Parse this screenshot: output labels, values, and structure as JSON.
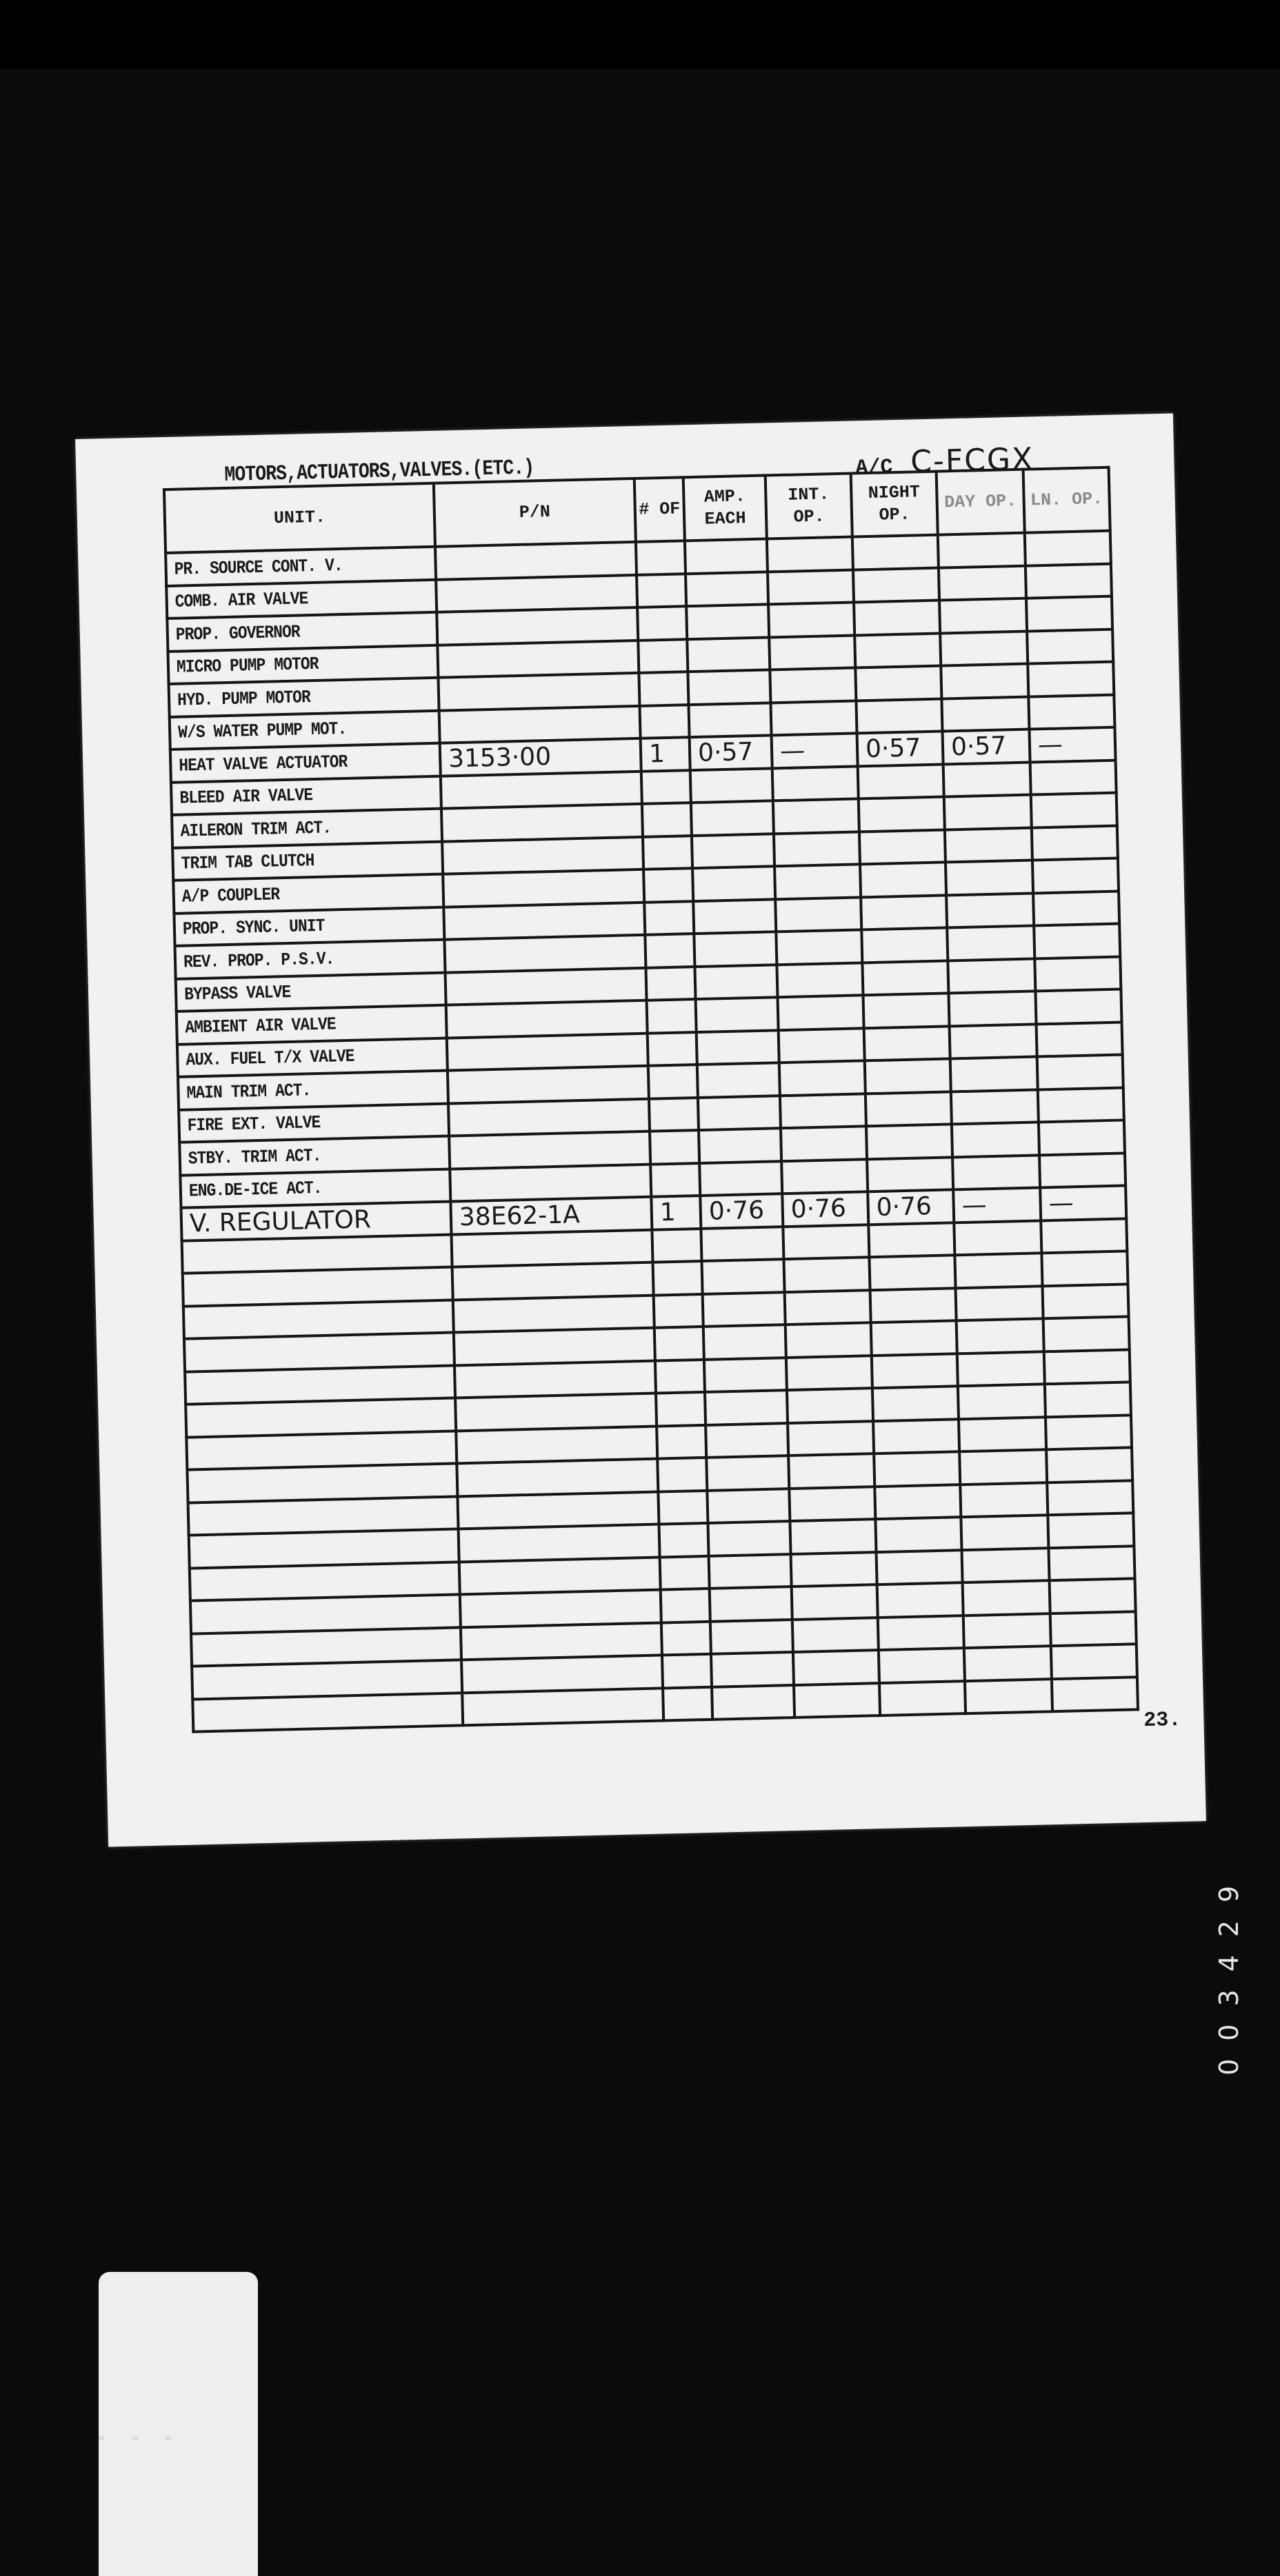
{
  "form": {
    "title": "MOTORS,ACTUATORS,VALVES.(ETC.)",
    "aircraft_label": "A/C",
    "aircraft_registration": "C-FCGX",
    "page_number": "23.",
    "columns": [
      "UNIT.",
      "P/N",
      "# OF",
      "AMP. EACH",
      "INT. OP.",
      "NIGHT OP.",
      "DAY OP.",
      "LN. OP."
    ],
    "rows": [
      {
        "unit": "PR. SOURCE CONT. V."
      },
      {
        "unit": "COMB. AIR VALVE"
      },
      {
        "unit": "PROP. GOVERNOR"
      },
      {
        "unit": "MICRO PUMP MOTOR"
      },
      {
        "unit": "HYD. PUMP MOTOR"
      },
      {
        "unit": "W/S WATER PUMP MOT."
      },
      {
        "unit": "HEAT VALVE ACTUATOR",
        "pn": "3153·00",
        "qty": "1",
        "amp": "0·57",
        "int": "—",
        "night": "0·57",
        "day": "0·57",
        "ln": "—"
      },
      {
        "unit": "BLEED AIR VALVE"
      },
      {
        "unit": "AILERON TRIM ACT."
      },
      {
        "unit": "TRIM TAB CLUTCH"
      },
      {
        "unit": "A/P COUPLER"
      },
      {
        "unit": "PROP. SYNC. UNIT"
      },
      {
        "unit": "REV. PROP. P.S.V."
      },
      {
        "unit": "BYPASS VALVE"
      },
      {
        "unit": "AMBIENT AIR VALVE"
      },
      {
        "unit": "AUX. FUEL T/X VALVE"
      },
      {
        "unit": "MAIN TRIM ACT."
      },
      {
        "unit": "FIRE EXT. VALVE"
      },
      {
        "unit": "STBY. TRIM ACT."
      },
      {
        "unit": "ENG.DE-ICE ACT."
      },
      {
        "unit": "V. REGULATOR",
        "pn": "38E62-1A",
        "qty": "1",
        "amp": "0·76",
        "int": "0·76",
        "night": "0·76",
        "day": "—",
        "ln": "—",
        "handwritten": true
      }
    ],
    "blank_rows": 15
  },
  "film": {
    "frame_number": "003429"
  }
}
